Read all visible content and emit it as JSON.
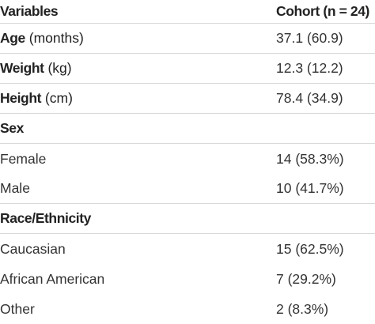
{
  "table": {
    "header": {
      "col1": "Variables",
      "col2": "Cohort (n = 24)"
    },
    "rows": [
      {
        "label": "Age",
        "unit": "(months)",
        "value": "37.1 (60.9)"
      },
      {
        "label": "Weight",
        "unit": "(kg)",
        "value": "12.3 (12.2)"
      },
      {
        "label": "Height",
        "unit": "(cm)",
        "value": "78.4 (34.9)"
      }
    ],
    "sex": {
      "title": "Sex",
      "items": [
        {
          "label": "Female",
          "value": "14 (58.3%)"
        },
        {
          "label": "Male",
          "value": "10 (41.7%)"
        }
      ]
    },
    "race": {
      "title": "Race/Ethnicity",
      "items": [
        {
          "label": "Caucasian",
          "value": "15 (62.5%)"
        },
        {
          "label": "African American",
          "value": "7 (29.2%)"
        },
        {
          "label": "Other",
          "value": "2 (8.3%)"
        }
      ]
    }
  }
}
